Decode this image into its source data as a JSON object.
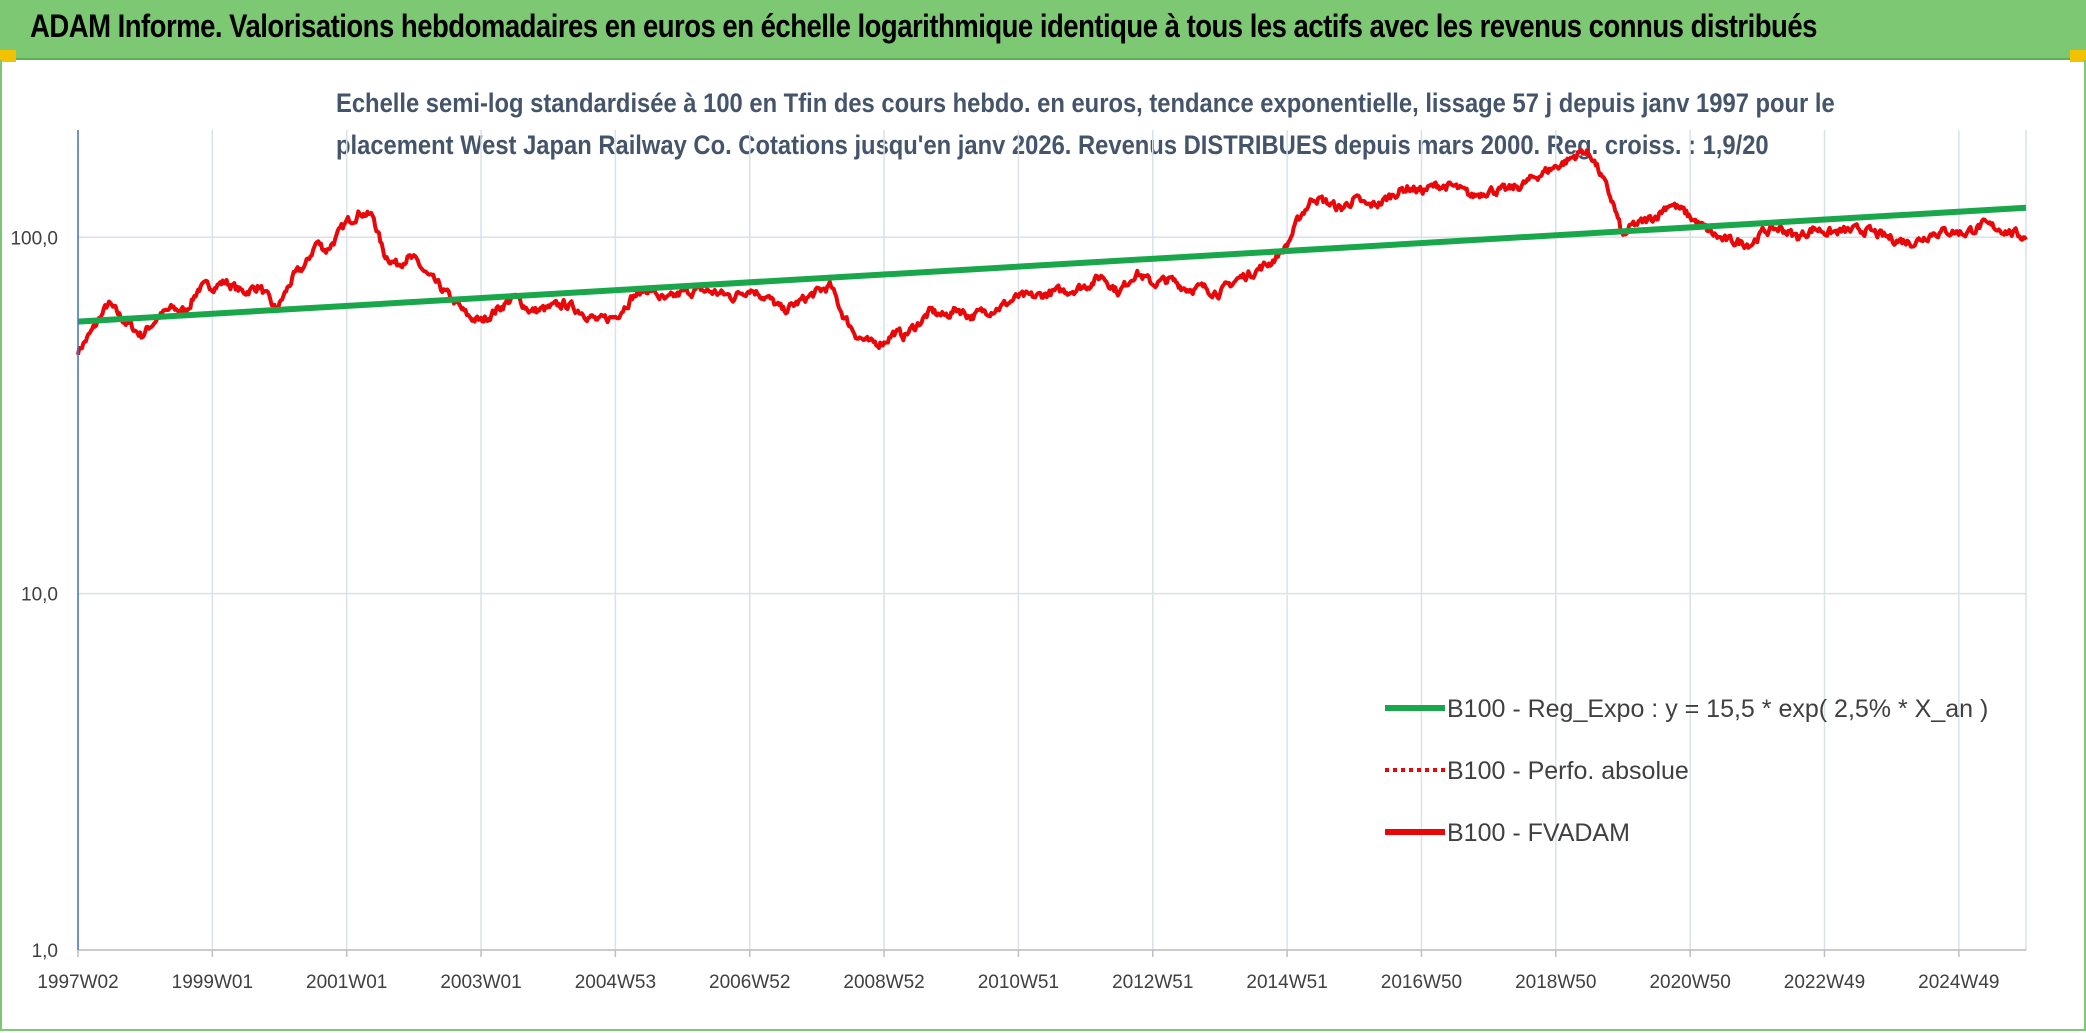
{
  "header": {
    "title": "ADAM Informe. Valorisations hebdomadaires en euros en échelle logarithmique identique à tous les actifs avec les revenus connus distribués"
  },
  "colors": {
    "banner": "#7dc872",
    "trend": "#1aa64a",
    "price": "#e8080a",
    "grid": "#d9e1ea",
    "axis": "#4472c4"
  },
  "chart_data": {
    "type": "line",
    "title_line1": "Echelle semi-log standardisée à 100 en Tfin des cours hebdo. en euros, tendance exponentielle, lissage 57 j depuis janv 1997 pour le",
    "title_line2": "placement West Japan Railway Co. Cotations jusqu'en janv 2026. Revenus DISTRIBUES depuis mars 2000. Reg. croiss. : 1,9/20",
    "y_scale": "log",
    "ylim": [
      1,
      200
    ],
    "y_ticks": [
      {
        "value": 1,
        "label": "1,0"
      },
      {
        "value": 10,
        "label": "10,0"
      },
      {
        "value": 100,
        "label": "100,0"
      }
    ],
    "xlim": [
      1997.0,
      2026.0
    ],
    "x_ticks": [
      {
        "value": 1997.0,
        "label": "1997W02"
      },
      {
        "value": 1999.0,
        "label": "1999W01"
      },
      {
        "value": 2001.0,
        "label": "2001W01"
      },
      {
        "value": 2003.0,
        "label": "2003W01"
      },
      {
        "value": 2005.0,
        "label": "2004W53"
      },
      {
        "value": 2007.0,
        "label": "2006W52"
      },
      {
        "value": 2009.0,
        "label": "2008W52"
      },
      {
        "value": 2011.0,
        "label": "2010W51"
      },
      {
        "value": 2013.0,
        "label": "2012W51"
      },
      {
        "value": 2015.0,
        "label": "2014W51"
      },
      {
        "value": 2017.0,
        "label": "2016W50"
      },
      {
        "value": 2019.0,
        "label": "2018W50"
      },
      {
        "value": 2021.0,
        "label": "2020W50"
      },
      {
        "value": 2023.0,
        "label": "2022W49"
      },
      {
        "value": 2025.0,
        "label": "2024W49"
      }
    ],
    "legend_position": "right-bottom",
    "series": [
      {
        "name": "B100 - Reg_Expo : y = 15,5 * exp( 2,5% *  X_an )",
        "style": "solid",
        "color": "#1aa64a",
        "x": [
          1997.0,
          2026.0
        ],
        "values": [
          58,
          121
        ]
      },
      {
        "name": "B100 - Perfo. absolue",
        "style": "dotted",
        "color": "#e8080a",
        "x": [],
        "values": []
      },
      {
        "name": "B100 - FVADAM",
        "style": "solid",
        "color": "#e8080a",
        "x": [
          1997.0,
          1997.2,
          1997.45,
          1997.7,
          1997.95,
          1998.2,
          1998.4,
          1998.6,
          1998.8,
          1999.0,
          1999.2,
          1999.45,
          1999.7,
          1999.95,
          2000.2,
          2000.4,
          2000.55,
          2000.7,
          2000.85,
          2001.0,
          2001.2,
          2001.4,
          2001.55,
          2001.75,
          2001.9,
          2002.05,
          2002.2,
          2002.4,
          2002.6,
          2002.8,
          2003.0,
          2003.25,
          2003.5,
          2003.75,
          2004.0,
          2004.25,
          2004.5,
          2004.75,
          2005.0,
          2005.25,
          2005.5,
          2005.75,
          2006.0,
          2006.25,
          2006.5,
          2006.75,
          2007.0,
          2007.25,
          2007.5,
          2007.75,
          2008.0,
          2008.2,
          2008.4,
          2008.6,
          2008.8,
          2009.0,
          2009.15,
          2009.3,
          2009.5,
          2009.7,
          2009.9,
          2010.1,
          2010.3,
          2010.5,
          2010.75,
          2011.0,
          2011.25,
          2011.5,
          2011.75,
          2012.0,
          2012.25,
          2012.5,
          2012.75,
          2013.0,
          2013.25,
          2013.5,
          2013.75,
          2014.0,
          2014.25,
          2014.5,
          2014.75,
          2015.0,
          2015.2,
          2015.4,
          2015.6,
          2015.8,
          2016.0,
          2016.2,
          2016.4,
          2016.6,
          2016.8,
          2017.0,
          2017.25,
          2017.5,
          2017.75,
          2018.0,
          2018.25,
          2018.5,
          2018.75,
          2019.0,
          2019.2,
          2019.4,
          2019.55,
          2019.7,
          2019.85,
          2020.0,
          2020.15,
          2020.3,
          2020.5,
          2020.7,
          2020.9,
          2021.1,
          2021.3,
          2021.5,
          2021.7,
          2021.9,
          2022.1,
          2022.35,
          2022.6,
          2022.85,
          2023.1,
          2023.35,
          2023.6,
          2023.85,
          2024.1,
          2024.35,
          2024.6,
          2024.85,
          2025.1,
          2025.35,
          2025.6,
          2025.85,
          2026.0
        ],
        "values": [
          48,
          54,
          65,
          58,
          53,
          60,
          63,
          62,
          72,
          73,
          75,
          70,
          73,
          62,
          77,
          84,
          97,
          92,
          100,
          110,
          118,
          114,
          90,
          84,
          88,
          85,
          78,
          72,
          66,
          60,
          58,
          63,
          68,
          62,
          63,
          65,
          62,
          58,
          60,
          68,
          72,
          66,
          70,
          71,
          70,
          68,
          72,
          68,
          62,
          66,
          70,
          73,
          60,
          53,
          50,
          51,
          54,
          53,
          57,
          62,
          60,
          63,
          60,
          62,
          64,
          68,
          68,
          70,
          71,
          73,
          78,
          70,
          80,
          74,
          76,
          72,
          72,
          70,
          76,
          80,
          85,
          95,
          115,
          130,
          125,
          120,
          128,
          122,
          125,
          133,
          138,
          135,
          140,
          138,
          130,
          136,
          135,
          140,
          150,
          158,
          165,
          175,
          168,
          145,
          125,
          100,
          108,
          110,
          115,
          125,
          118,
          110,
          103,
          98,
          97,
          96,
          104,
          106,
          100,
          106,
          103,
          104,
          105,
          101,
          98,
          97,
          103,
          104,
          103,
          108,
          106,
          102,
          100
        ]
      }
    ]
  }
}
